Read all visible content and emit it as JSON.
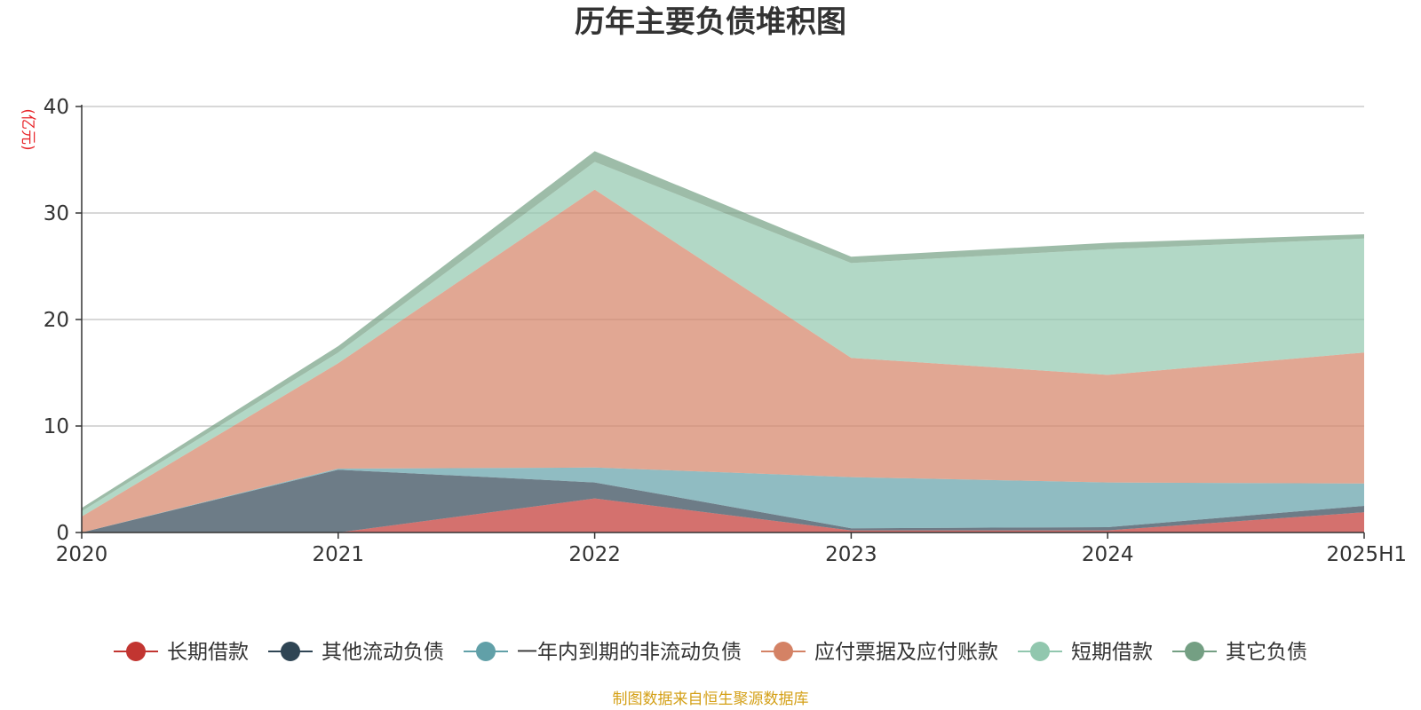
{
  "chart_data": {
    "type": "area",
    "stacked": true,
    "title": "历年主要负债堆积图",
    "ylabel": "(亿元)",
    "xlabel": "",
    "categories": [
      "2020",
      "2021",
      "2022",
      "2023",
      "2024",
      "2025H1"
    ],
    "ylim": [
      0,
      40
    ],
    "yticks": [
      0,
      10,
      20,
      30,
      40
    ],
    "grid": true,
    "legend_position": "bottom",
    "series": [
      {
        "name": "长期借款",
        "color": "#c23531",
        "values": [
          0,
          0,
          3.2,
          0.2,
          0.2,
          1.9
        ]
      },
      {
        "name": "其他流动负债",
        "color": "#2f4554",
        "values": [
          0,
          5.9,
          1.5,
          0.2,
          0.3,
          0.6
        ]
      },
      {
        "name": "一年内到期的非流动负债",
        "color": "#61a0a8",
        "values": [
          0,
          0.1,
          1.4,
          4.8,
          4.2,
          2.1
        ]
      },
      {
        "name": "应付票据及应付账款",
        "color": "#d48265",
        "values": [
          1.5,
          9.9,
          26.1,
          11.2,
          10.1,
          12.3
        ]
      },
      {
        "name": "短期借款",
        "color": "#91c7ae",
        "values": [
          0.5,
          1.0,
          2.6,
          8.9,
          11.8,
          10.7
        ]
      },
      {
        "name": "其它负债",
        "color": "#749f83",
        "values": [
          0.3,
          0.6,
          1.0,
          0.6,
          0.6,
          0.4
        ]
      }
    ]
  },
  "source_note": "制图数据来自恒生聚源数据库"
}
